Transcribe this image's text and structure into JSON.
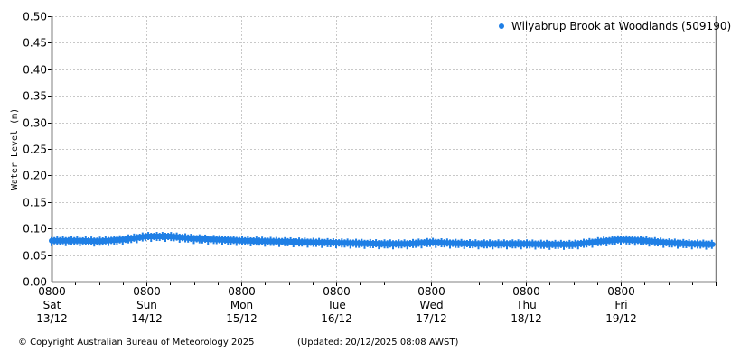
{
  "chart_data": {
    "type": "line",
    "title": "",
    "ylabel": "Water Level (m)",
    "xlabel": "",
    "ylim": [
      0,
      0.5
    ],
    "yticks": [
      "0.00",
      "0.05",
      "0.10",
      "0.15",
      "0.20",
      "0.25",
      "0.30",
      "0.35",
      "0.40",
      "0.45",
      "0.50"
    ],
    "grid": true,
    "legend_position": "top-right",
    "x_ticks": [
      {
        "time": "0800",
        "day": "Sat",
        "date": "13/12"
      },
      {
        "time": "0800",
        "day": "Sun",
        "date": "14/12"
      },
      {
        "time": "0800",
        "day": "Mon",
        "date": "15/12"
      },
      {
        "time": "0800",
        "day": "Tue",
        "date": "16/12"
      },
      {
        "time": "0800",
        "day": "Wed",
        "date": "17/12"
      },
      {
        "time": "0800",
        "day": "Thu",
        "date": "18/12"
      },
      {
        "time": "0800",
        "day": "Fri",
        "date": "19/12"
      }
    ],
    "series": [
      {
        "name": "Wilyabrup Brook at Woodlands (509190)",
        "color": "#1f7fe5",
        "x_days": [
          0,
          0.25,
          0.5,
          0.75,
          1.0,
          1.25,
          1.5,
          1.75,
          2.0,
          2.25,
          2.5,
          2.75,
          3.0,
          3.25,
          3.5,
          3.75,
          4.0,
          4.25,
          4.5,
          4.75,
          5.0,
          5.25,
          5.5,
          5.75,
          6.0,
          6.25,
          6.5,
          6.75,
          7.0
        ],
        "values": [
          0.077,
          0.077,
          0.076,
          0.079,
          0.085,
          0.085,
          0.081,
          0.079,
          0.077,
          0.076,
          0.075,
          0.074,
          0.073,
          0.072,
          0.071,
          0.071,
          0.074,
          0.072,
          0.071,
          0.071,
          0.071,
          0.07,
          0.07,
          0.075,
          0.079,
          0.077,
          0.073,
          0.071,
          0.07
        ]
      }
    ]
  },
  "legend": {
    "label": "Wilyabrup Brook at Woodlands (509190)"
  },
  "footer": {
    "copyright": "© Copyright Australian Bureau of Meteorology 2025",
    "updated": "(Updated: 20/12/2025 08:08 AWST)"
  }
}
